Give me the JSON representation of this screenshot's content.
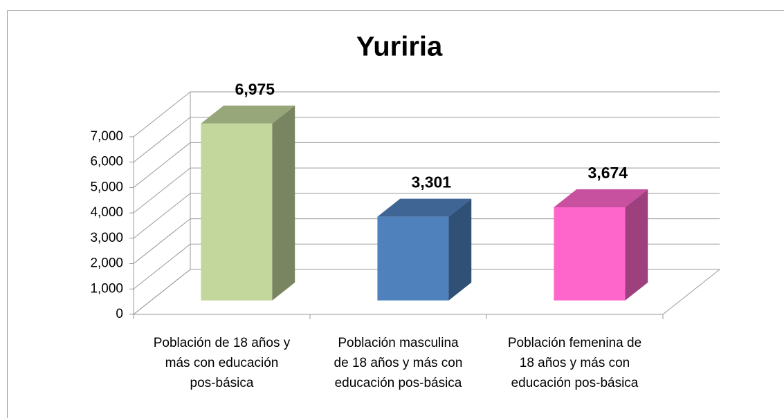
{
  "chart_data": {
    "type": "bar3d",
    "title": "Yuriria",
    "categories": [
      "Población de 18 años y\nmás con educación\npos-básica",
      "Población masculina\nde 18 años y más con\neducación pos-básica",
      "Población femenina de\n18 años y más con\neducación pos-básica"
    ],
    "values": [
      6975,
      3301,
      3674
    ],
    "value_labels": [
      "6,975",
      "3,301",
      "3,674"
    ],
    "colors": [
      "#c3d69b",
      "#4f81bd",
      "#ff66cc"
    ],
    "ylim": [
      0,
      7000
    ],
    "yticks": [
      0,
      {
        "value": 1000,
        "label": "1,000"
      },
      {
        "value": 2000,
        "label": "2,000"
      },
      {
        "value": 3000,
        "label": "3,000"
      },
      {
        "value": 4000,
        "label": "4,000"
      },
      {
        "value": 5000,
        "label": "5,000"
      },
      {
        "value": 6000,
        "label": "6,000"
      },
      {
        "value": 7000,
        "label": "7,000"
      }
    ],
    "grid": true
  }
}
